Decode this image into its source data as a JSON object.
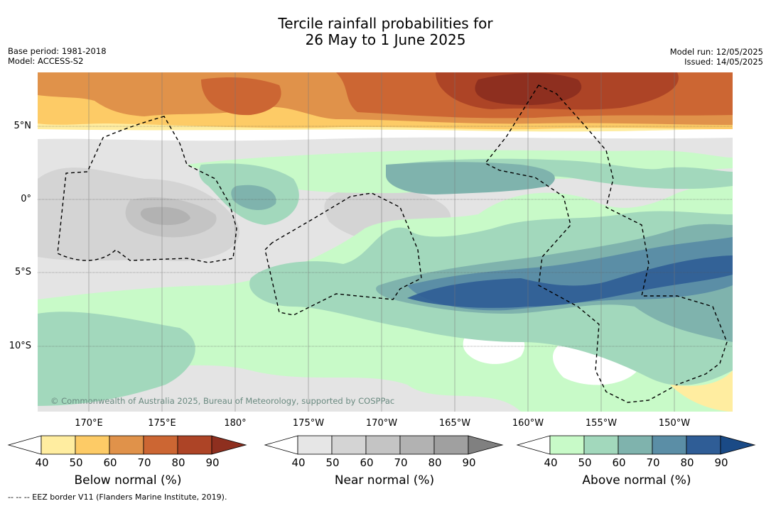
{
  "title": {
    "line1": "Tercile rainfall probabilities for",
    "line2": "26 May to 1 June 2025"
  },
  "meta_left": {
    "base_period": "Base period: 1981-2018",
    "model": "Model: ACCESS-S2"
  },
  "meta_right": {
    "model_run": "Model run: 12/05/2025",
    "issued": "Issued: 14/05/2025"
  },
  "copyright": "© Commonwealth of Australia 2025, Bureau of Meteorology, supported by COSPPac",
  "lat_labels": [
    "5°N",
    "0°",
    "5°S",
    "10°S"
  ],
  "lon_labels": [
    "170°E",
    "175°E",
    "180°",
    "175°W",
    "170°W",
    "165°W",
    "160°W",
    "155°W",
    "150°W"
  ],
  "colorbars": [
    {
      "title": "Below normal (%)",
      "ticks": [
        "40",
        "50",
        "60",
        "70",
        "80",
        "90"
      ],
      "colors": [
        "#ffeda0",
        "#fdcb66",
        "#e0924a",
        "#cc6633",
        "#ad4426",
        "#8e2f1f"
      ]
    },
    {
      "title": "Near normal (%)",
      "ticks": [
        "40",
        "50",
        "60",
        "70",
        "80",
        "90"
      ],
      "colors": [
        "#e6e6e6",
        "#d4d4d4",
        "#c4c4c4",
        "#b2b2b2",
        "#a0a0a0",
        "#808080"
      ]
    },
    {
      "title": "Above normal (%)",
      "ticks": [
        "40",
        "50",
        "60",
        "70",
        "80",
        "90"
      ],
      "colors": [
        "#c8fac8",
        "#a2d8bc",
        "#7fb3ad",
        "#5b8ea6",
        "#2f5d96",
        "#1a4a86"
      ]
    }
  ],
  "footer": "-- -- -- EEZ border V11 (Flanders Marine Institute, 2019)."
}
